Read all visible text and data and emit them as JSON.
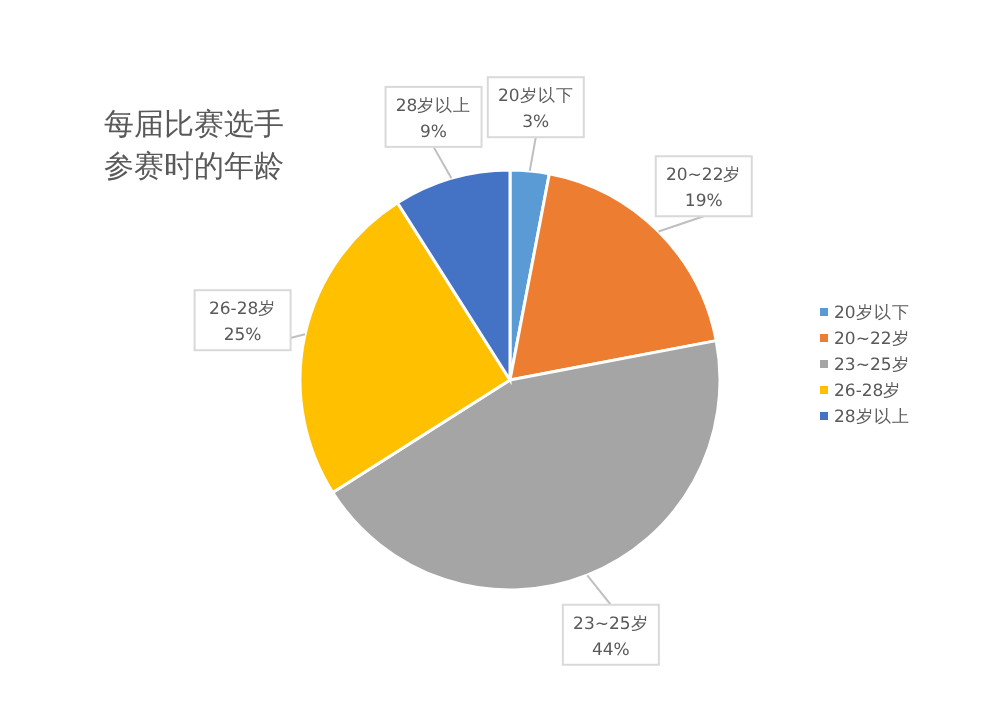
{
  "chart_data": {
    "type": "pie",
    "title": "每届比赛选手参赛时的年龄",
    "categories": [
      "20岁以下",
      "20~22岁",
      "23~25岁",
      "26-28岁",
      "28岁以上"
    ],
    "values": [
      3,
      19,
      44,
      25,
      9
    ],
    "value_labels": [
      "3%",
      "19%",
      "44%",
      "25%",
      "9%"
    ],
    "colors": [
      "#5b9bd5",
      "#ed7d31",
      "#a5a5a5",
      "#ffc000",
      "#4472c4"
    ],
    "legend": "right"
  }
}
